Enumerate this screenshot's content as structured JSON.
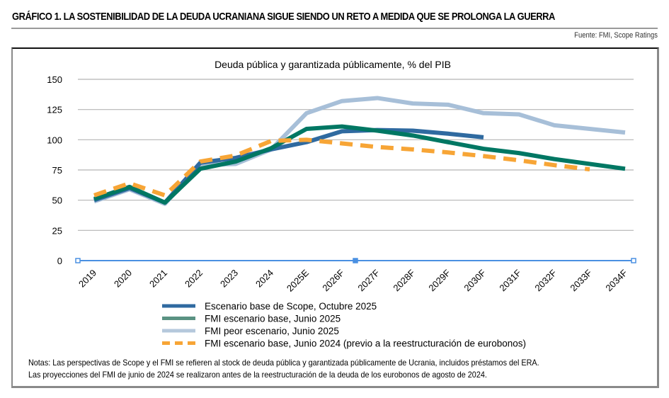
{
  "header": {
    "title": "GRÁFICO 1. LA SOSTENIBILIDAD DE LA DEUDA UCRANIANA SIGUE SIENDO UN RETO A MEDIDA QUE SE PROLONGA LA GUERRA",
    "source": "Fuente: FMI, Scope Ratings"
  },
  "notes": {
    "line1": "Notas: Las perspectivas de Scope y el FMI se refieren al stock de deuda pública y garantizada públicamente de Ucrania, incluidos préstamos del ERA.",
    "line2": "Las proyecciones del FMI de junio de 2024 se realizaron antes de la reestructuración de la deuda de los eurobonos de agosto de 2024."
  },
  "chart_data": {
    "type": "line",
    "title": "Deuda pública y garantizada públicamente, % del PIB",
    "xlabel": "",
    "ylabel": "",
    "ylim": [
      0,
      150
    ],
    "yticks": [
      0,
      25,
      50,
      75,
      100,
      125,
      150
    ],
    "grid": true,
    "legend_position": "bottom",
    "categories": [
      "2019",
      "2020",
      "2021",
      "2022",
      "2023",
      "2024",
      "2025E",
      "2026F",
      "2027F",
      "2028F",
      "2029F",
      "2030F",
      "2031F",
      "2032F",
      "2033F",
      "2034F"
    ],
    "series": [
      {
        "name": "FMI peor escenario, Junio 2025",
        "color": "#a7bfd8",
        "style": "solid",
        "values": [
          49,
          59,
          47,
          79,
          80,
          92,
          122,
          132,
          134.5,
          130,
          129,
          122,
          121,
          112,
          109,
          106
        ]
      },
      {
        "name": "Escenario base de Scope, Octubre 2025",
        "color": "#2f6aa0",
        "style": "solid",
        "values": [
          50,
          60,
          48,
          81,
          85,
          92,
          98,
          107,
          108,
          107.5,
          105,
          102,
          null,
          null,
          null,
          null
        ]
      },
      {
        "name": "FMI escenario base, Junio 2025",
        "color": "#007763",
        "style": "solid",
        "values": [
          51,
          61,
          48,
          76,
          82,
          93,
          109,
          111,
          107.5,
          103.5,
          98,
          92.5,
          89,
          84,
          80,
          76
        ]
      },
      {
        "name": "FMI escenario base, Junio 2024 (previo a la reestructuración de eurobonos)",
        "color": "#f7a536",
        "style": "dashed",
        "values": [
          54,
          64,
          54,
          82,
          87,
          99,
          100,
          97,
          94,
          92,
          89.5,
          86.5,
          83,
          79,
          75.5,
          null
        ]
      }
    ],
    "legend_order": [
      1,
      2,
      0,
      3
    ],
    "legend_colors": [
      "#2f6aa0",
      "#5a9282",
      "#b5c8dc",
      "#f7a536"
    ],
    "zero_line_color": "#4a90e2"
  }
}
